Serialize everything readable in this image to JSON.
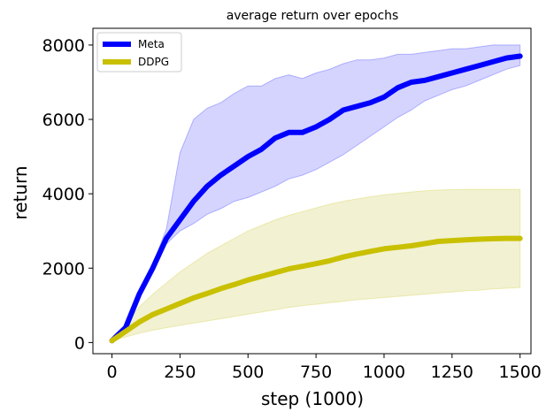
{
  "chart_data": {
    "type": "line",
    "title": "average return over epochs",
    "xlabel": "step (1000)",
    "ylabel": "return",
    "xlim": [
      -70,
      1540
    ],
    "ylim": [
      -300,
      8450
    ],
    "x_ticks": [
      0,
      250,
      500,
      750,
      1000,
      1250,
      1500
    ],
    "y_ticks": [
      0,
      2000,
      4000,
      6000,
      8000
    ],
    "grid": false,
    "legend_position": "top-left",
    "series": [
      {
        "name": "Meta",
        "color": "#0000ff",
        "band_color": "#ccccff",
        "x": [
          0,
          50,
          100,
          150,
          200,
          250,
          300,
          350,
          400,
          450,
          500,
          550,
          600,
          650,
          700,
          750,
          800,
          850,
          900,
          950,
          1000,
          1050,
          1100,
          1150,
          1200,
          1250,
          1300,
          1350,
          1400,
          1450,
          1500
        ],
        "values": [
          50,
          400,
          1300,
          2000,
          2800,
          3300,
          3800,
          4200,
          4500,
          4750,
          5000,
          5200,
          5500,
          5650,
          5650,
          5800,
          6000,
          6250,
          6350,
          6450,
          6600,
          6850,
          7000,
          7050,
          7150,
          7250,
          7350,
          7450,
          7550,
          7650,
          7700
        ],
        "lower": [
          50,
          380,
          1250,
          1950,
          2650,
          3000,
          3200,
          3450,
          3600,
          3800,
          3900,
          4050,
          4200,
          4400,
          4500,
          4650,
          4850,
          5050,
          5300,
          5550,
          5800,
          6050,
          6250,
          6500,
          6650,
          6800,
          6900,
          7050,
          7200,
          7350,
          7450
        ],
        "upper": [
          50,
          420,
          1350,
          2100,
          3050,
          5100,
          6000,
          6300,
          6450,
          6700,
          6900,
          6900,
          7100,
          7200,
          7100,
          7250,
          7350,
          7500,
          7600,
          7600,
          7650,
          7750,
          7750,
          7800,
          7850,
          7900,
          7900,
          7950,
          8000,
          8000,
          8000
        ]
      },
      {
        "name": "DDPG",
        "color": "#c8c000",
        "band_color": "#f0efca",
        "x": [
          0,
          50,
          100,
          150,
          200,
          250,
          300,
          350,
          400,
          450,
          500,
          550,
          600,
          650,
          700,
          750,
          800,
          850,
          900,
          950,
          1000,
          1050,
          1100,
          1150,
          1200,
          1250,
          1300,
          1350,
          1400,
          1450,
          1500
        ],
        "values": [
          50,
          300,
          550,
          750,
          900,
          1050,
          1200,
          1320,
          1450,
          1560,
          1680,
          1780,
          1880,
          1980,
          2050,
          2120,
          2200,
          2300,
          2380,
          2450,
          2520,
          2560,
          2600,
          2660,
          2720,
          2740,
          2760,
          2780,
          2790,
          2800,
          2800
        ],
        "lower": [
          50,
          150,
          250,
          330,
          400,
          460,
          520,
          580,
          640,
          700,
          760,
          820,
          880,
          940,
          990,
          1030,
          1070,
          1110,
          1150,
          1180,
          1210,
          1240,
          1270,
          1300,
          1330,
          1360,
          1390,
          1410,
          1440,
          1460,
          1480
        ],
        "upper": [
          50,
          500,
          950,
          1300,
          1600,
          1900,
          2150,
          2400,
          2600,
          2800,
          3000,
          3150,
          3300,
          3420,
          3520,
          3620,
          3720,
          3800,
          3860,
          3920,
          3970,
          4010,
          4050,
          4080,
          4100,
          4110,
          4120,
          4120,
          4120,
          4120,
          4120
        ]
      }
    ]
  }
}
